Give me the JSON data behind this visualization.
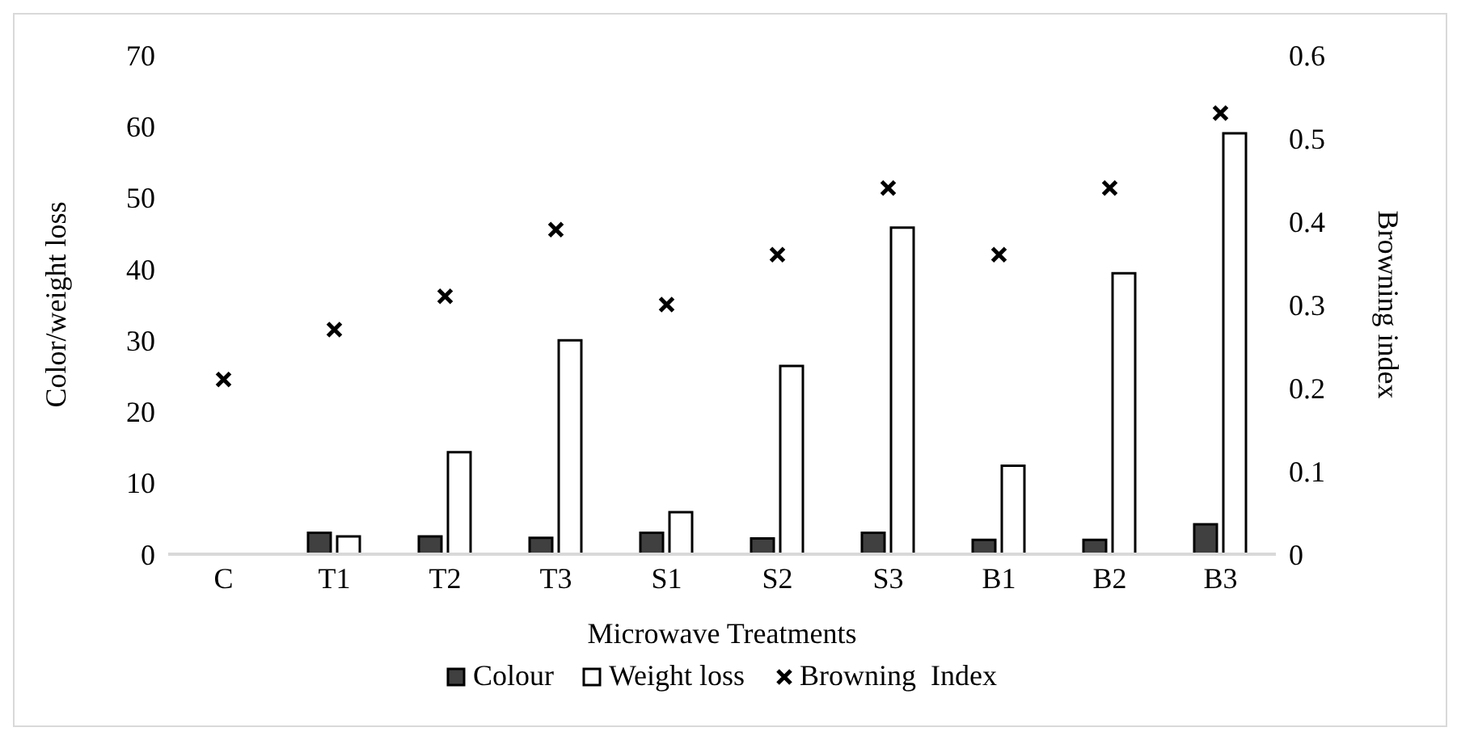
{
  "chart_data": {
    "type": "bar",
    "xlabel": "Microwave Treatments",
    "ylabel": "Color/weight loss",
    "y2label": "Browning index",
    "categories": [
      "C",
      "T1",
      "T2",
      "T3",
      "S1",
      "S2",
      "S3",
      "B1",
      "B2",
      "B3"
    ],
    "series": [
      {
        "name": "Colour",
        "color": "#404040",
        "values": [
          0,
          3,
          2.5,
          2.3,
          3,
          2.2,
          3,
          2,
          2,
          4.2
        ]
      },
      {
        "name": "Weight loss",
        "color": "#ffffff",
        "values": [
          0,
          2.5,
          14.3,
          30,
          5.9,
          26.4,
          45.8,
          12.4,
          39.4,
          59
        ]
      },
      {
        "name": "Browning  Index",
        "type": "scatter",
        "axis": "y2",
        "color": "#000000",
        "values": [
          0.21,
          0.27,
          0.31,
          0.39,
          0.3,
          0.36,
          0.44,
          0.36,
          0.44,
          0.53
        ]
      }
    ],
    "ylim": [
      0,
      70
    ],
    "yticks": [
      0,
      10,
      20,
      30,
      40,
      50,
      60,
      70
    ],
    "y2lim": [
      0,
      0.6
    ],
    "y2ticks": [
      0,
      0.1,
      0.2,
      0.3,
      0.4,
      0.5,
      0.6
    ],
    "marker": "cross",
    "legend": "bottom",
    "grid": false
  }
}
